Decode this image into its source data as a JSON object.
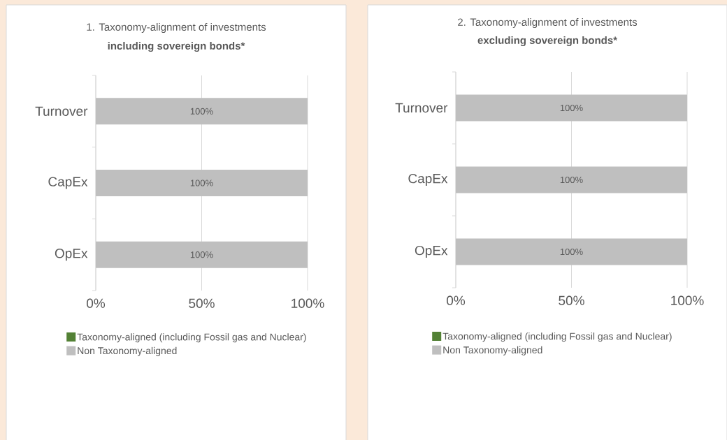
{
  "chart_data": [
    {
      "type": "bar",
      "orientation": "horizontal",
      "stacked": true,
      "title": "1. Taxonomy-alignment of investments",
      "subtitle": "including sovereign bonds*",
      "categories": [
        "Turnover",
        "CapEx",
        "OpEx"
      ],
      "series": [
        {
          "name": "Taxonomy-aligned (including Fossil gas and Nuclear)",
          "color": "#538135",
          "values": [
            0,
            0,
            0
          ]
        },
        {
          "name": "Non Taxonomy-aligned",
          "color": "#bfbfbf",
          "values": [
            100,
            100,
            100
          ],
          "value_labels": [
            "100%",
            "100%",
            "100%"
          ]
        }
      ],
      "xlim": [
        0,
        100
      ],
      "xticks": [
        {
          "value": 0,
          "label": "0%"
        },
        {
          "value": 50,
          "label": "50%"
        },
        {
          "value": 100,
          "label": "100%"
        }
      ],
      "grid": "x",
      "legend": "bottom"
    },
    {
      "type": "bar",
      "orientation": "horizontal",
      "stacked": true,
      "title": "2. Taxonomy-alignment of investments",
      "subtitle": "excluding sovereign bonds*",
      "categories": [
        "Turnover",
        "CapEx",
        "OpEx"
      ],
      "series": [
        {
          "name": "Taxonomy-aligned (including Fossil gas and Nuclear)",
          "color": "#538135",
          "values": [
            0,
            0,
            0
          ]
        },
        {
          "name": "Non Taxonomy-aligned",
          "color": "#bfbfbf",
          "values": [
            100,
            100,
            100
          ],
          "value_labels": [
            "100%",
            "100%",
            "100%"
          ]
        }
      ],
      "xlim": [
        0,
        100
      ],
      "xticks": [
        {
          "value": 0,
          "label": "0%"
        },
        {
          "value": 50,
          "label": "50%"
        },
        {
          "value": 100,
          "label": "100%"
        }
      ],
      "grid": "x",
      "legend": "bottom"
    }
  ]
}
